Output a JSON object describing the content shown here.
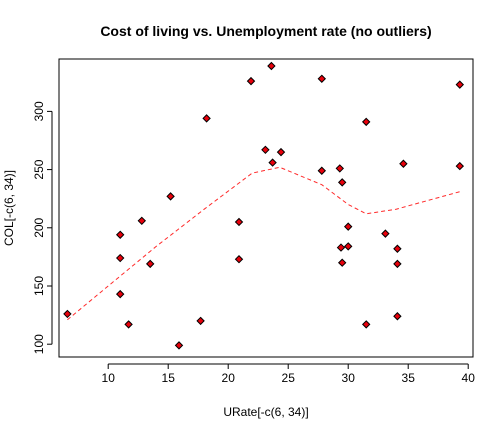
{
  "chart_data": {
    "type": "scatter",
    "title": "Cost of living vs. Unemployment rate (no outliers)",
    "xlabel": "URate[-c(6, 34)]",
    "ylabel": "COL[-c(6, 34)]",
    "xlim": [
      5.9,
      40.4
    ],
    "ylim": [
      89,
      345
    ],
    "xticks": [
      10,
      15,
      20,
      25,
      30,
      35,
      40
    ],
    "yticks": [
      100,
      150,
      200,
      250,
      300
    ],
    "grid": false,
    "point_color": "#e8000b",
    "smooth_color": "#ff2a2a",
    "points": [
      {
        "x": 6.6,
        "y": 126
      },
      {
        "x": 11.0,
        "y": 194
      },
      {
        "x": 11.0,
        "y": 174
      },
      {
        "x": 11.0,
        "y": 143
      },
      {
        "x": 11.7,
        "y": 117
      },
      {
        "x": 12.8,
        "y": 206
      },
      {
        "x": 13.5,
        "y": 169
      },
      {
        "x": 15.2,
        "y": 227
      },
      {
        "x": 15.9,
        "y": 99
      },
      {
        "x": 17.7,
        "y": 120
      },
      {
        "x": 18.2,
        "y": 294
      },
      {
        "x": 20.9,
        "y": 205
      },
      {
        "x": 20.9,
        "y": 173
      },
      {
        "x": 21.9,
        "y": 326
      },
      {
        "x": 23.1,
        "y": 267
      },
      {
        "x": 23.6,
        "y": 339
      },
      {
        "x": 23.7,
        "y": 256
      },
      {
        "x": 24.4,
        "y": 265
      },
      {
        "x": 27.8,
        "y": 328
      },
      {
        "x": 27.8,
        "y": 249
      },
      {
        "x": 29.3,
        "y": 251
      },
      {
        "x": 29.5,
        "y": 239
      },
      {
        "x": 29.4,
        "y": 183
      },
      {
        "x": 29.5,
        "y": 170
      },
      {
        "x": 30.0,
        "y": 201
      },
      {
        "x": 30.0,
        "y": 184
      },
      {
        "x": 31.5,
        "y": 291
      },
      {
        "x": 31.5,
        "y": 117
      },
      {
        "x": 33.1,
        "y": 195
      },
      {
        "x": 34.1,
        "y": 182
      },
      {
        "x": 34.1,
        "y": 169
      },
      {
        "x": 34.1,
        "y": 124
      },
      {
        "x": 34.6,
        "y": 255
      },
      {
        "x": 39.3,
        "y": 323
      },
      {
        "x": 39.3,
        "y": 253
      }
    ],
    "smooth_line": [
      {
        "x": 6.6,
        "y": 121
      },
      {
        "x": 10,
        "y": 150
      },
      {
        "x": 14,
        "y": 184
      },
      {
        "x": 18,
        "y": 216
      },
      {
        "x": 22,
        "y": 247
      },
      {
        "x": 24.3,
        "y": 252
      },
      {
        "x": 27.8,
        "y": 237
      },
      {
        "x": 30,
        "y": 220
      },
      {
        "x": 31.5,
        "y": 212
      },
      {
        "x": 34,
        "y": 216
      },
      {
        "x": 39.3,
        "y": 231
      }
    ]
  }
}
